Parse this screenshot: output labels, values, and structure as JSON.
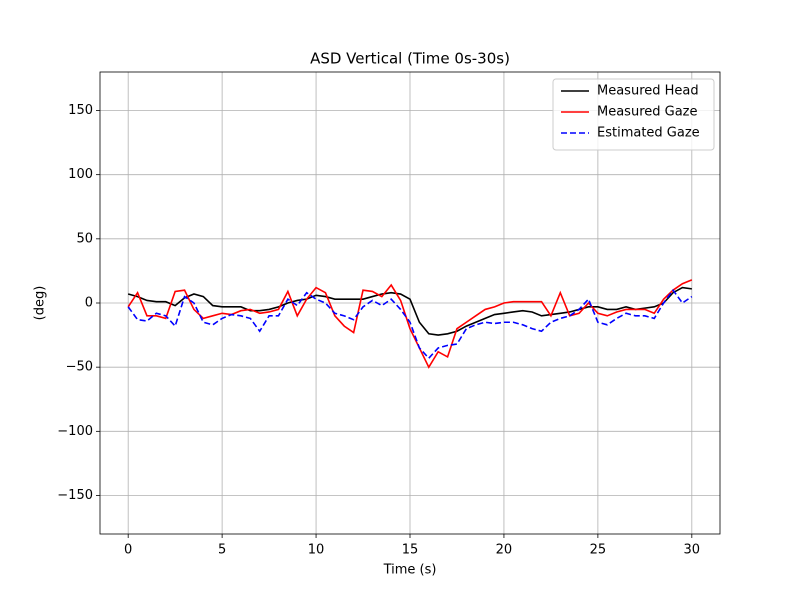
{
  "chart_data": {
    "type": "line",
    "title": "ASD Vertical (Time 0s-30s)",
    "xlabel": "Time (s)",
    "ylabel": "(deg)",
    "x": [
      0,
      0.5,
      1,
      1.5,
      2,
      2.5,
      3,
      3.5,
      4,
      4.5,
      5,
      5.5,
      6,
      6.5,
      7,
      7.5,
      8,
      8.5,
      9,
      9.5,
      10,
      10.5,
      11,
      11.5,
      12,
      12.5,
      13,
      13.5,
      14,
      14.5,
      15,
      15.5,
      16,
      16.5,
      17,
      17.5,
      18,
      18.5,
      19,
      19.5,
      20,
      20.5,
      21,
      21.5,
      22,
      22.5,
      23,
      23.5,
      24,
      24.5,
      25,
      25.5,
      26,
      26.5,
      27,
      27.5,
      28,
      28.5,
      29,
      29.5,
      30
    ],
    "series": [
      {
        "name": "Measured Head",
        "color": "#000000",
        "linestyle": "solid",
        "values": [
          7,
          5,
          2,
          1,
          1,
          -2,
          4,
          7,
          5,
          -2,
          -3,
          -3,
          -3,
          -6,
          -6,
          -5,
          -3,
          0,
          2,
          3,
          6,
          5,
          3,
          3,
          3,
          3,
          5,
          7,
          8,
          7,
          3,
          -15,
          -24,
          -25,
          -24,
          -22,
          -18,
          -15,
          -12,
          -9,
          -8,
          -7,
          -6,
          -7,
          -10,
          -9,
          -8,
          -7,
          -5,
          -3,
          -3,
          -5,
          -5,
          -3,
          -5,
          -4,
          -3,
          0,
          8,
          12,
          11
        ]
      },
      {
        "name": "Measured Gaze",
        "color": "#ff0000",
        "linestyle": "solid",
        "values": [
          -3,
          8,
          -10,
          -10,
          -12,
          9,
          10,
          -5,
          -12,
          -10,
          -8,
          -9,
          -6,
          -5,
          -8,
          -7,
          -5,
          9,
          -10,
          3,
          12,
          8,
          -10,
          -18,
          -23,
          10,
          9,
          5,
          14,
          2,
          -20,
          -35,
          -50,
          -38,
          -42,
          -20,
          -15,
          -10,
          -5,
          -3,
          0,
          1,
          1,
          1,
          1,
          -10,
          8,
          -10,
          -8,
          0,
          -8,
          -10,
          -7,
          -5,
          -5,
          -5,
          -8,
          3,
          10,
          15,
          18
        ]
      },
      {
        "name": "Estimated Gaze",
        "color": "#0000ff",
        "linestyle": "dashed",
        "values": [
          -3,
          -13,
          -14,
          -8,
          -10,
          -18,
          5,
          0,
          -15,
          -17,
          -12,
          -9,
          -10,
          -12,
          -22,
          -10,
          -10,
          3,
          -2,
          8,
          3,
          0,
          -8,
          -10,
          -13,
          -3,
          2,
          -2,
          3,
          -5,
          -15,
          -35,
          -43,
          -35,
          -33,
          -32,
          -20,
          -17,
          -15,
          -16,
          -15,
          -15,
          -17,
          -20,
          -22,
          -15,
          -12,
          -10,
          -5,
          3,
          -15,
          -17,
          -12,
          -8,
          -10,
          -10,
          -12,
          0,
          10,
          0,
          5
        ]
      }
    ],
    "xlim": [
      -1.5,
      31.5
    ],
    "ylim": [
      -180,
      180
    ],
    "xticks": [
      0,
      5,
      10,
      15,
      20,
      25,
      30
    ],
    "yticks": [
      {
        "value": -150,
        "label": "−150"
      },
      {
        "value": -100,
        "label": "−100"
      },
      {
        "value": -50,
        "label": "−50"
      },
      0,
      50,
      100,
      150
    ],
    "grid": true,
    "legend": "upper right"
  }
}
